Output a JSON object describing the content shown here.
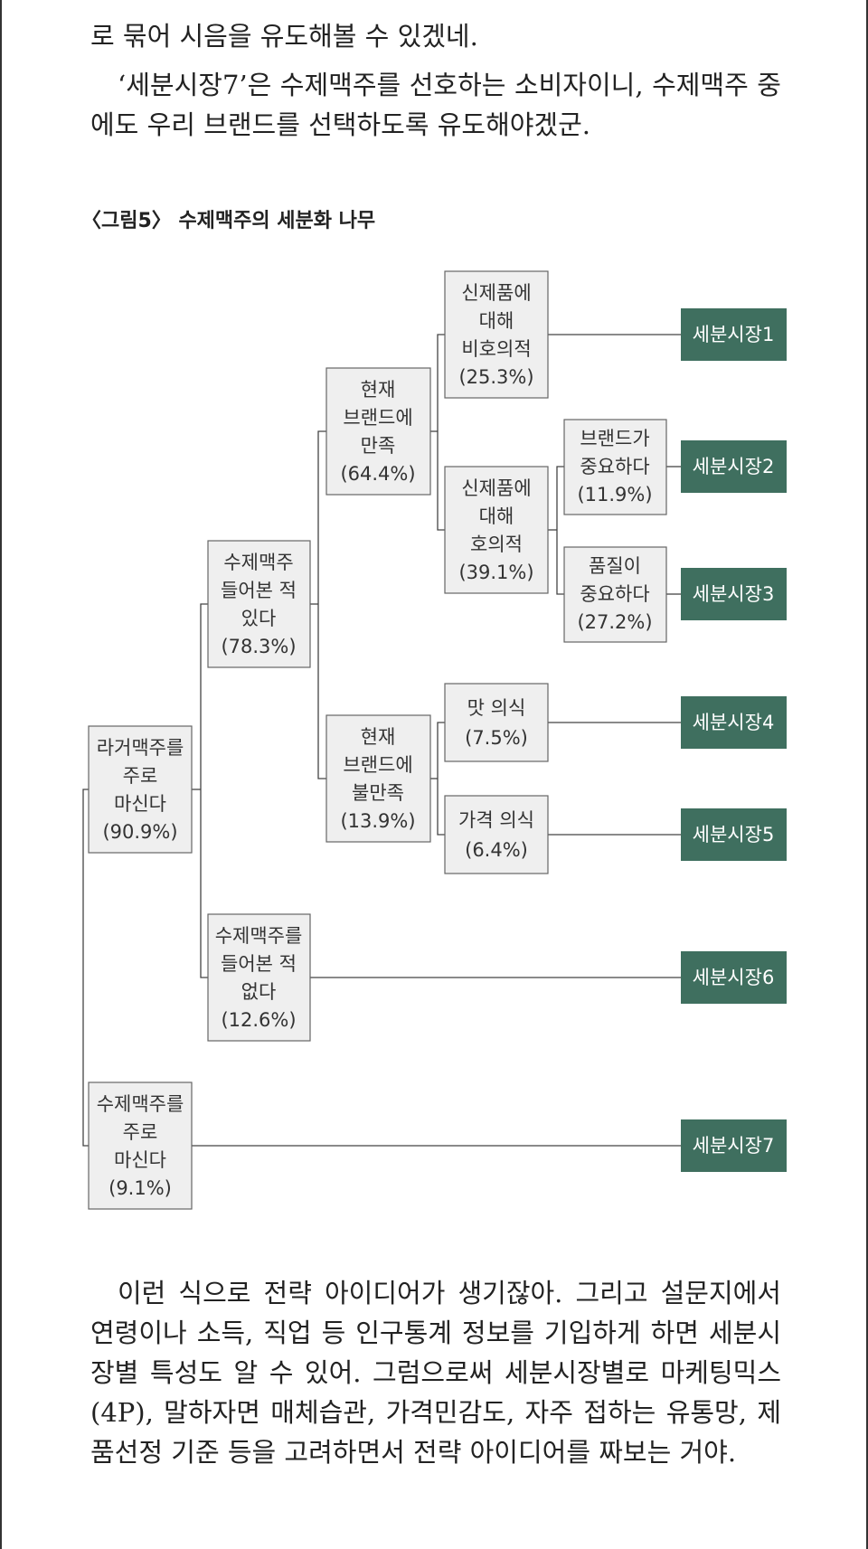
{
  "text": {
    "p1": "로 묶어 시음을 유도해볼 수 있겠네.",
    "p2": "‘세분시장7’은 수제맥주를 선호하는 소비자이니, 수제맥주 중에도 우리 브랜드를 선택하도록 유도해야겠군.",
    "caption": "〈그림5〉 수제맥주의 세분화 나무",
    "p3": "이런 식으로 전략 아이디어가 생기잖아. 그리고 설문지에서 연령이나 소득, 직업 등 인구통계 정보를 기입하게 하면 세분시장별 특성도 알 수 있어. 그럼으로써 세분시장별로 마케팅믹스(4P), 말하자면 매체습관, 가격민감도, 자주 접하는 유통망, 제품선정 기준 등을 고려하면서 전략 아이디어를 짜보는 거야."
  },
  "tree": {
    "lager": [
      "라거맥주를",
      "주로",
      "마신다",
      "(90.9%)"
    ],
    "craft_main": [
      "수제맥주를",
      "주로",
      "마신다",
      "(9.1%)"
    ],
    "heard": [
      "수제맥주",
      "들어본 적",
      "있다",
      "(78.3%)"
    ],
    "not_heard": [
      "수제맥주를",
      "들어본 적",
      "없다",
      "(12.6%)"
    ],
    "satisfied": [
      "현재",
      "브랜드에",
      "만족",
      "(64.4%)"
    ],
    "dissatisfied": [
      "현재",
      "브랜드에",
      "불만족",
      "(13.9%)"
    ],
    "unfavorable": [
      "신제품에",
      "대해",
      "비호의적",
      "(25.3%)"
    ],
    "favorable": [
      "신제품에",
      "대해",
      "호의적",
      "(39.1%)"
    ],
    "taste": [
      "맛 의식",
      "(7.5%)"
    ],
    "price": [
      "가격 의식",
      "(6.4%)"
    ],
    "brand_important": [
      "브랜드가",
      "중요하다",
      "(11.9%)"
    ],
    "quality_important": [
      "품질이",
      "중요하다",
      "(27.2%)"
    ],
    "segments": [
      "세분시장1",
      "세분시장2",
      "세분시장3",
      "세분시장4",
      "세분시장5",
      "세분시장6",
      "세분시장7"
    ]
  }
}
